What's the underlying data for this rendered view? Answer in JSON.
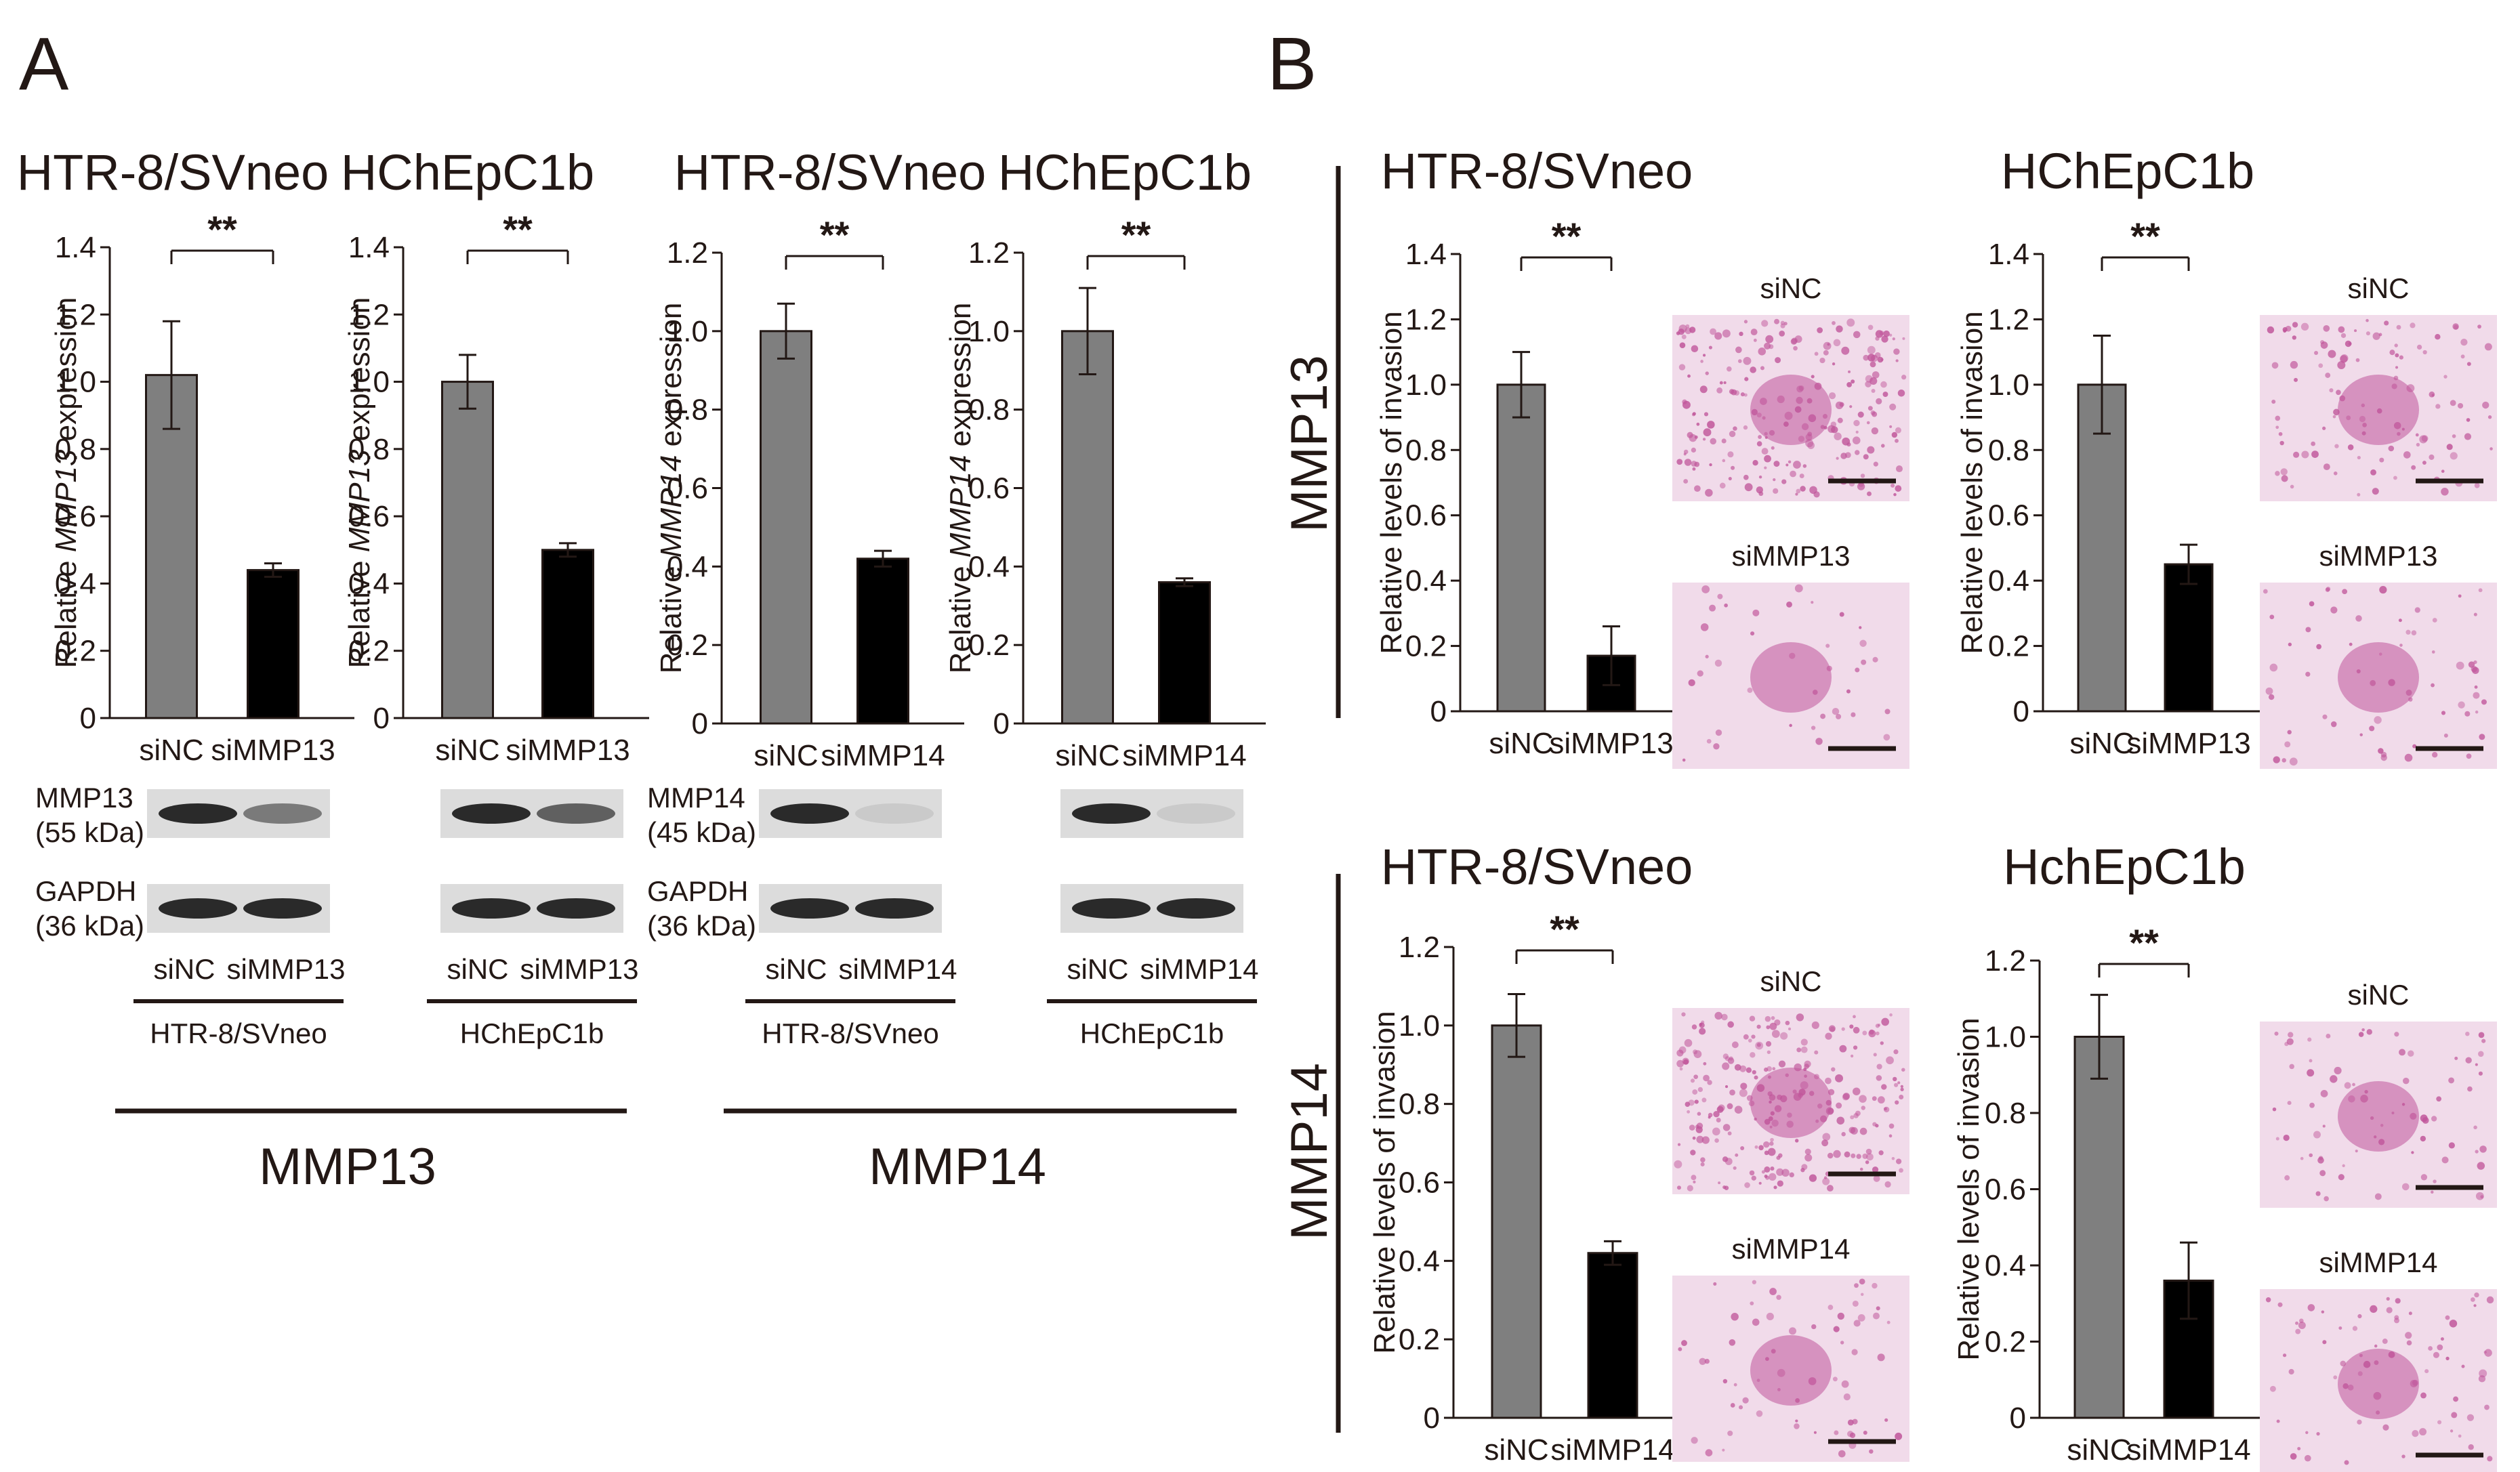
{
  "panel_letters": [
    "A",
    "B"
  ],
  "colors": {
    "siNC_bar": "#7f7f7f",
    "siMMP_bar": "#000000",
    "stain": "#c0559a",
    "stain_bg": "#f1dbea"
  },
  "panel_a": {
    "groups": [
      "MMP13",
      "MMP14"
    ],
    "blot_cells": [
      "HTR-8/SVneo",
      "HChEpC1b",
      "HTR-8/SVneo",
      "HChEpC1b"
    ]
  },
  "panel_b": {
    "row_labels": [
      "MMP13",
      "MMP14"
    ]
  },
  "chart_data": [
    {
      "type": "bar",
      "panel": "A",
      "title": "HTR-8/SVneo",
      "ylabel": "Relative MMP13 expression",
      "ylabel_pre": "Relative ",
      "ylabel_gene": "MMP13",
      "ylabel_post": " expression",
      "categories": [
        "siNC",
        "siMMP13"
      ],
      "values": [
        1.02,
        0.44
      ],
      "errors": [
        0.16,
        0.02
      ],
      "ylim": [
        0,
        1.4
      ],
      "ticks": [
        "0",
        "0.2",
        "0.4",
        "0.6",
        "0.8",
        "1.0",
        "1.2",
        "1.4"
      ],
      "sig": "**",
      "blot": {
        "target": "MMP13",
        "target_kda": "(55 kDa)",
        "loading": "GAPDH",
        "loading_kda": "(36 kDa)",
        "lanes": [
          "siNC",
          "siMMP13"
        ],
        "cell": "HTR-8/SVneo",
        "target_band_intensity": [
          1.0,
          0.55
        ],
        "loading_band_intensity": [
          1.0,
          1.0
        ]
      }
    },
    {
      "type": "bar",
      "panel": "A",
      "title": "HChEpC1b",
      "ylabel": "Relative MMP13 expression",
      "ylabel_pre": "Relative ",
      "ylabel_gene": "MMP13",
      "ylabel_post": " expression",
      "categories": [
        "siNC",
        "siMMP13"
      ],
      "values": [
        1.0,
        0.5
      ],
      "errors": [
        0.08,
        0.02
      ],
      "ylim": [
        0,
        1.4
      ],
      "ticks": [
        "0",
        "0.2",
        "0.4",
        "0.6",
        "0.8",
        "1.0",
        "1.2",
        "1.4"
      ],
      "sig": "**",
      "blot": {
        "target": "",
        "target_kda": "",
        "loading": "",
        "loading_kda": "",
        "lanes": [
          "siNC",
          "siMMP13"
        ],
        "cell": "HChEpC1b",
        "target_band_intensity": [
          1.0,
          0.7
        ],
        "loading_band_intensity": [
          1.0,
          1.0
        ]
      }
    },
    {
      "type": "bar",
      "panel": "A",
      "title": "HTR-8/SVneo",
      "ylabel": "Relative MMP14 expression",
      "ylabel_pre": "Relative ",
      "ylabel_gene": "MMP14",
      "ylabel_post": " expression",
      "categories": [
        "siNC",
        "siMMP14"
      ],
      "values": [
        1.0,
        0.42
      ],
      "errors": [
        0.07,
        0.02
      ],
      "ylim": [
        0,
        1.2
      ],
      "ticks": [
        "0",
        "0.2",
        "0.4",
        "0.6",
        "0.8",
        "1.0",
        "1.2"
      ],
      "sig": "**",
      "blot": {
        "target": "MMP14",
        "target_kda": "(45 kDa)",
        "loading": "GAPDH",
        "loading_kda": "(36 kDa)",
        "lanes": [
          "siNC",
          "siMMP14"
        ],
        "cell": "HTR-8/SVneo",
        "target_band_intensity": [
          1.0,
          0.1
        ],
        "loading_band_intensity": [
          1.0,
          1.0
        ]
      }
    },
    {
      "type": "bar",
      "panel": "A",
      "title": "HChEpC1b",
      "ylabel": "Relative MMP14 expression",
      "ylabel_pre": "Relative ",
      "ylabel_gene": "MMP14",
      "ylabel_post": " expression",
      "categories": [
        "siNC",
        "siMMP14"
      ],
      "values": [
        1.0,
        0.36
      ],
      "errors": [
        0.11,
        0.01
      ],
      "ylim": [
        0,
        1.2
      ],
      "ticks": [
        "0",
        "0.2",
        "0.4",
        "0.6",
        "0.8",
        "1.0",
        "1.2"
      ],
      "sig": "**",
      "blot": {
        "target": "",
        "target_kda": "",
        "loading": "",
        "loading_kda": "",
        "lanes": [
          "siNC",
          "siMMP14"
        ],
        "cell": "HChEpC1b",
        "target_band_intensity": [
          1.0,
          0.1
        ],
        "loading_band_intensity": [
          1.0,
          1.0
        ]
      }
    },
    {
      "type": "bar",
      "panel": "B",
      "title": "HTR-8/SVneo",
      "ylabel": "Relative levels of invasion",
      "categories": [
        "siNC",
        "siMMP13"
      ],
      "values": [
        1.0,
        0.17
      ],
      "errors": [
        0.1,
        0.09
      ],
      "ylim": [
        0,
        1.4
      ],
      "ticks": [
        "0",
        "0.2",
        "0.4",
        "0.6",
        "0.8",
        "1.0",
        "1.2",
        "1.4"
      ],
      "sig": "**",
      "images": [
        {
          "label": "siNC",
          "density": 0.9
        },
        {
          "label": "siMMP13",
          "density": 0.15
        }
      ]
    },
    {
      "type": "bar",
      "panel": "B",
      "title": "HChEpC1b",
      "ylabel": "Relative levels of invasion",
      "categories": [
        "siNC",
        "siMMP13"
      ],
      "values": [
        1.0,
        0.45
      ],
      "errors": [
        0.15,
        0.06
      ],
      "ylim": [
        0,
        1.4
      ],
      "ticks": [
        "0",
        "0.2",
        "0.4",
        "0.6",
        "0.8",
        "1.0",
        "1.2",
        "1.4"
      ],
      "sig": "**",
      "images": [
        {
          "label": "siNC",
          "density": 0.45
        },
        {
          "label": "siMMP13",
          "density": 0.25
        }
      ]
    },
    {
      "type": "bar",
      "panel": "B",
      "title": "HTR-8/SVneo",
      "ylabel": "Relative levels of invasion",
      "categories": [
        "siNC",
        "siMMP14"
      ],
      "values": [
        1.0,
        0.42
      ],
      "errors": [
        0.08,
        0.03
      ],
      "ylim": [
        0,
        1.2
      ],
      "ticks": [
        "0",
        "0.2",
        "0.4",
        "0.6",
        "0.8",
        "1.0",
        "1.2"
      ],
      "sig": "**",
      "images": [
        {
          "label": "siNC",
          "density": 1.0
        },
        {
          "label": "siMMP14",
          "density": 0.25
        }
      ]
    },
    {
      "type": "bar",
      "panel": "B",
      "title": "HchEpC1b",
      "ylabel": "Relative levels of invasion",
      "categories": [
        "siNC",
        "siMMP14"
      ],
      "values": [
        1.0,
        0.36
      ],
      "errors": [
        0.11,
        0.1
      ],
      "ylim": [
        0,
        1.2
      ],
      "ticks": [
        "0",
        "0.2",
        "0.4",
        "0.6",
        "0.8",
        "1.0",
        "1.2"
      ],
      "sig": "**",
      "images": [
        {
          "label": "siNC",
          "density": 0.3
        },
        {
          "label": "siMMP14",
          "density": 0.3
        }
      ]
    }
  ]
}
